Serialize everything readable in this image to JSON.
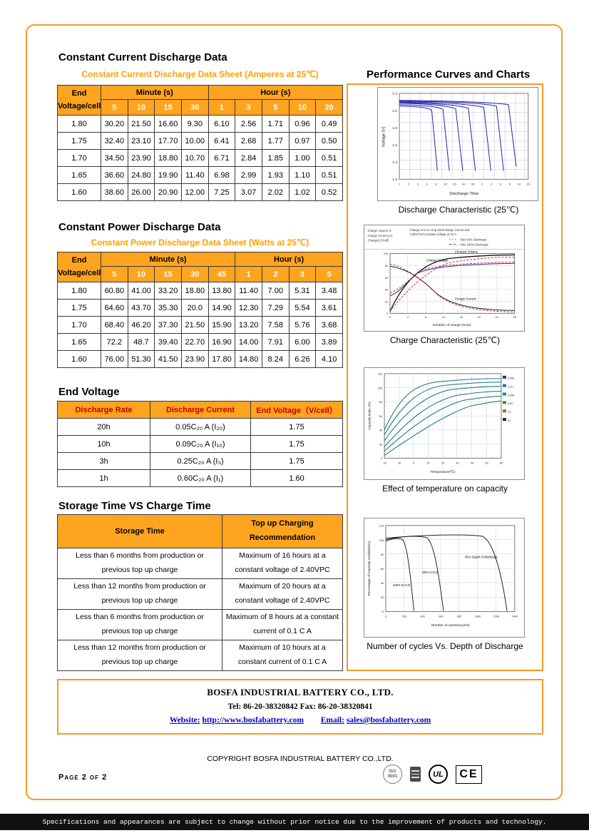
{
  "colors": {
    "orange": "#FFA41E",
    "orange_border": "#F59A23",
    "orange_text": "#FFA000",
    "maroon": "#C00000",
    "link_blue": "#0000CC",
    "curve_blue": "#2222A8",
    "curve_teal": "#0E6E80",
    "curve_red": "#C00000",
    "bar_black": "#111111"
  },
  "headings": {
    "constant_current": "Constant Current Discharge Data",
    "constant_current_sub": "Constant Current Discharge Data Sheet (Amperes at 25℃)",
    "constant_power": "Constant Power Discharge Data",
    "constant_power_sub": "Constant Power Discharge Data Sheet (Watts at 25℃)",
    "end_voltage": "End Voltage",
    "storage": "Storage Time VS Charge Time",
    "performance": "Performance Curves and Charts"
  },
  "current_table": {
    "corner_line1": "End",
    "corner_line2": "Voltage/cell",
    "minute_label": "Minute (s)",
    "hour_label": "Hour (s)",
    "minute_cols": [
      "5",
      "10",
      "15",
      "30"
    ],
    "hour_cols": [
      "1",
      "3",
      "5",
      "10",
      "20"
    ],
    "rows": [
      [
        "1.80",
        "30.20",
        "21.50",
        "16.60",
        "9.30",
        "6.10",
        "2.56",
        "1.71",
        "0.96",
        "0.49"
      ],
      [
        "1.75",
        "32.40",
        "23.10",
        "17.70",
        "10.00",
        "6.41",
        "2.68",
        "1.77",
        "0.97",
        "0.50"
      ],
      [
        "1.70",
        "34.50",
        "23.90",
        "18.80",
        "10.70",
        "6.71",
        "2.84",
        "1.85",
        "1.00",
        "0.51"
      ],
      [
        "1.65",
        "36.60",
        "24.80",
        "19.90",
        "11.40",
        "6.98",
        "2.99",
        "1.93",
        "1.10",
        "0.51"
      ],
      [
        "1.60",
        "38.60",
        "26.00",
        "20.90",
        "12.00",
        "7.25",
        "3.07",
        "2.02",
        "1.02",
        "0.52"
      ]
    ]
  },
  "power_table": {
    "corner_line1": "End",
    "corner_line2": "Voltage/cell",
    "minute_label": "Minute (s)",
    "hour_label": "Hour (s)",
    "minute_cols": [
      "5",
      "10",
      "15",
      "30",
      "45"
    ],
    "hour_cols": [
      "1",
      "2",
      "3",
      "5"
    ],
    "rows": [
      [
        "1.80",
        "60.80",
        "41.00",
        "33.20",
        "18.80",
        "13.80",
        "11.40",
        "7.00",
        "5.31",
        "3.48"
      ],
      [
        "1.75",
        "64.60",
        "43.70",
        "35.30",
        "20.0",
        "14.90",
        "12.30",
        "7.29",
        "5.54",
        "3.61"
      ],
      [
        "1.70",
        "68.40",
        "46.20",
        "37.30",
        "21.50",
        "15.90",
        "13.20",
        "7.58",
        "5.76",
        "3.68"
      ],
      [
        "1.65",
        "72.2",
        "48.7",
        "39.40",
        "22.70",
        "16.90",
        "14.00",
        "7.91",
        "6.00",
        "3.89"
      ],
      [
        "1.60",
        "76.00",
        "51.30",
        "41.50",
        "23.90",
        "17.80",
        "14.80",
        "8.24",
        "6.26",
        "4.10"
      ]
    ]
  },
  "end_voltage_table": {
    "headers": [
      "Discharge Rate",
      "Discharge Current",
      "End Voltage（V/cell）"
    ],
    "rows": [
      [
        "20h",
        "0.05C₂₀ A (I₂₀)",
        "1.75"
      ],
      [
        "10h",
        "0.09C₂₀ A (I₁₀)",
        "1.75"
      ],
      [
        "3h",
        "0.25C₂₀ A (I₃)",
        "1.75"
      ],
      [
        "1h",
        "0.60C₂₀ A (I₁)",
        "1.60"
      ]
    ]
  },
  "storage_table": {
    "header_left": "Storage Time",
    "header_right": [
      "Top up Charging",
      "Recommendation"
    ],
    "rows": [
      [
        [
          "Less than 6 months from production or",
          "previous top up charge"
        ],
        [
          "Maximum of 16 hours at a",
          "constant voltage of 2.40VPC"
        ]
      ],
      [
        [
          "Less than 12 months from production or",
          "previous top up charge"
        ],
        [
          "Maximum of 20 hours at a",
          "constant voltage of 2.40VPC"
        ]
      ],
      [
        [
          "Less than 6 months from production or",
          "previous top up charge"
        ],
        [
          "Maximum of 8 hours at a constant",
          "current of 0.1 C A"
        ]
      ],
      [
        [
          "Less than 12 months from production or",
          "previous top up charge"
        ],
        [
          "Maximum of 10 hours at a",
          "constant current of 0.1 C A"
        ]
      ]
    ]
  },
  "charts": {
    "discharge": {
      "caption": "Discharge Characteristic (25℃)",
      "ylabel": "Voltage [V]",
      "xlabel": "Discharge Time",
      "yticks": [
        "1.2",
        "1.4",
        "1.6",
        "1.8",
        "2.0",
        "2.2"
      ],
      "xticks": [
        "1",
        "2",
        "4",
        "6",
        "8",
        "10",
        "20",
        "40",
        "60",
        "2",
        "4",
        "6",
        "8",
        "10",
        "20"
      ]
    },
    "charge": {
      "caption": "Charge Characteristic (25℃)",
      "xlabel": "Duration of charge (Hour)",
      "xticks": [
        "0",
        "4",
        "8",
        "12",
        "16",
        "20",
        "24",
        "28"
      ],
      "yticks": [
        "0",
        "20",
        "40",
        "60",
        "80",
        "100"
      ],
      "header1": "Charge at 0.1C Amp initial charge current and",
      "header2": "2.25V/Cell Constant voltage at 20 C",
      "legend1": "After 50% Discharge",
      "legend2": "After 100% Discharge",
      "col1": "Charge Volume %",
      "col2": "Charge Current (A)",
      "col3": "Charged (V/cell)",
      "curve1": "Charged Volume",
      "curve2": "Charge Voltage",
      "curve3": "Charge Current"
    },
    "temperature": {
      "caption": "Effect of temperature on capacity",
      "ylabel": "Capacity Ratio (%)",
      "xlabel": "Temperature(℃)",
      "yticks": [
        "0",
        "20",
        "40",
        "60",
        "80",
        "100",
        "120"
      ],
      "xticks": [
        "-20",
        "-10",
        "0",
        "10",
        "20",
        "30",
        "40",
        "50",
        "60"
      ],
      "legend": [
        "0.05C",
        "0.1C",
        "0.25C",
        "0.6C",
        "1C",
        "2C"
      ],
      "legend_colors": [
        "#00427E",
        "#0F75BC",
        "#0A8A8A",
        "#4A7F2C",
        "#8A6D00",
        "#222222"
      ]
    },
    "cycles": {
      "caption": "Number of cycles Vs. Depth of Discharge",
      "ylabel": "Percentage of Capacity Available(%)",
      "xlabel": "Number of cycles(Cycles)",
      "yticks": [
        "0",
        "20",
        "40",
        "60",
        "80",
        "100",
        "120"
      ],
      "xticks": [
        "0",
        "200",
        "400",
        "600",
        "800",
        "1000",
        "1200",
        "1400"
      ],
      "labels": [
        "100% D.O.D.",
        "50% D.O.D.",
        "30% Depth of discharge"
      ]
    }
  },
  "footer": {
    "company": "BOSFA INDUSTRIAL BATTERY CO., LTD.",
    "tel_fax": "Tel: 86-20-38320842    Fax: 86-20-38320841",
    "website_label": "Website:",
    "website": "http://www.bosfabattery.com",
    "email_label": "Email:",
    "email": "sales@bosfabattery.com",
    "copyright": "COPYRIGHT BOSFA INDUSTRIAL BATTERY CO.,LTD.",
    "page_label": "Page 2 of 2",
    "disclaimer": "Specifications and appearances are subject to change without prior notice due to the improvement of products and technology.",
    "certs": {
      "iso_line1": "ISO",
      "iso_line2": "9001",
      "ul": "UL",
      "ce": "CE"
    }
  }
}
